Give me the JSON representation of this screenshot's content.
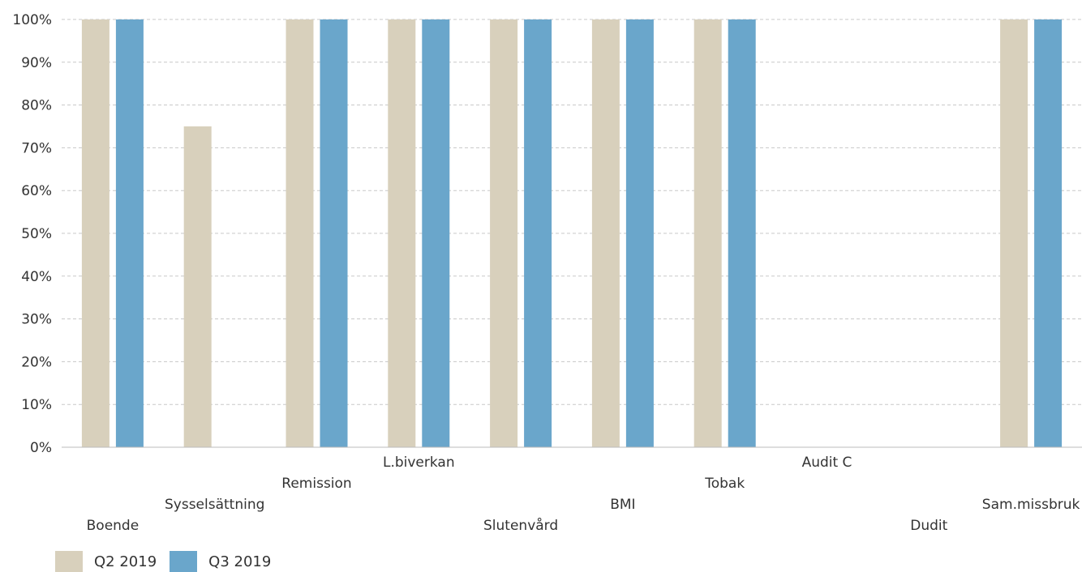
{
  "chart_data": {
    "type": "bar",
    "categories": [
      "Boende",
      "Sysselsättning",
      "Remission",
      "L.biverkan",
      "Slutenvård",
      "BMI",
      "Tobak",
      "Audit C",
      "Dudit",
      "Sam.missbruk"
    ],
    "series": [
      {
        "name": "Q2 2019",
        "color": "#d8d0bc",
        "values": [
          100,
          75,
          100,
          100,
          100,
          100,
          100,
          0,
          0,
          100
        ]
      },
      {
        "name": "Q3 2019",
        "color": "#6aa6cb",
        "values": [
          100,
          0,
          100,
          100,
          100,
          100,
          100,
          0,
          0,
          100
        ]
      }
    ],
    "ylim": [
      0,
      100
    ],
    "yticks": [
      "0%",
      "10%",
      "20%",
      "30%",
      "40%",
      "50%",
      "60%",
      "70%",
      "80%",
      "90%",
      "100%"
    ],
    "grid": true,
    "legend_position": "bottom-left"
  }
}
